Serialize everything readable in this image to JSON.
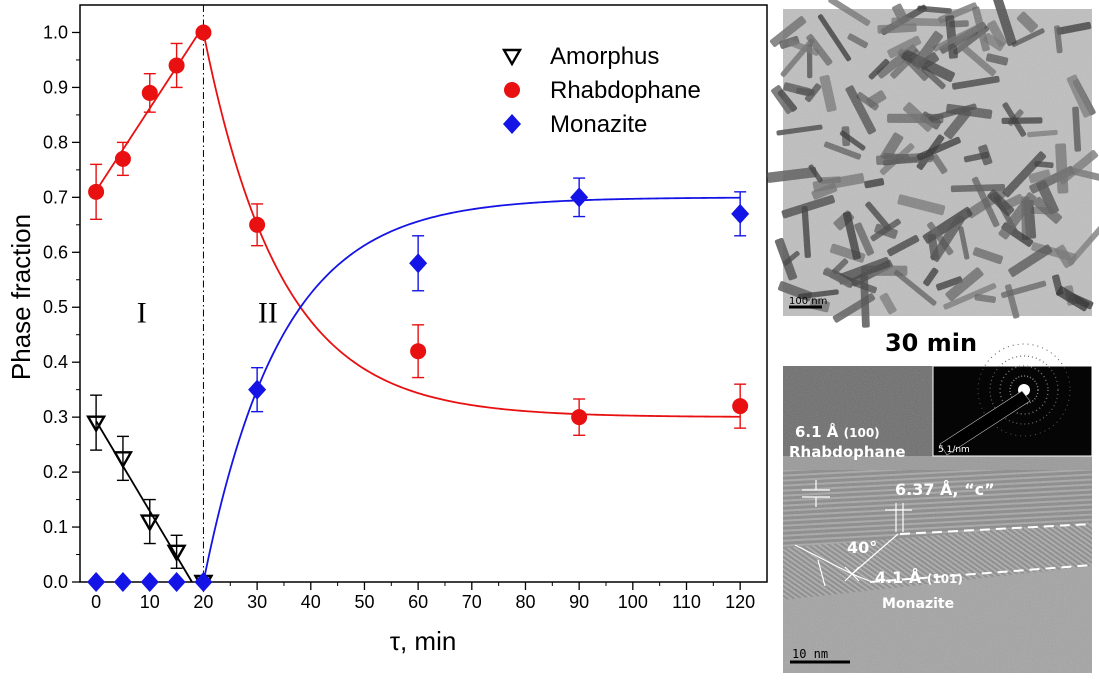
{
  "chart_data": {
    "type": "scatter",
    "xlabel": "τ, min",
    "ylabel": "Phase  fraction",
    "xlim": [
      -3,
      125
    ],
    "ylim": [
      0,
      1.05
    ],
    "xticks": [
      0,
      10,
      20,
      30,
      40,
      50,
      60,
      70,
      80,
      90,
      100,
      110,
      120
    ],
    "yticks": [
      0.0,
      0.1,
      0.2,
      0.3,
      0.4,
      0.5,
      0.6,
      0.7,
      0.8,
      0.9,
      1.0
    ],
    "divider_x": 20,
    "regions": [
      {
        "label": "I",
        "x": 8.5,
        "y": 0.49
      },
      {
        "label": "II",
        "x": 32,
        "y": 0.49
      }
    ],
    "legend_position": "top-right",
    "series": [
      {
        "name": "Amorphus",
        "marker": "triangle-down",
        "color": "#000000",
        "points": [
          {
            "x": 0,
            "y": 0.29,
            "err": 0.05
          },
          {
            "x": 5,
            "y": 0.225,
            "err": 0.04
          },
          {
            "x": 10,
            "y": 0.11,
            "err": 0.04
          },
          {
            "x": 15,
            "y": 0.055,
            "err": 0.03
          },
          {
            "x": 20,
            "y": 0.0,
            "err": 0.0
          }
        ]
      },
      {
        "name": "Rhabdophane",
        "marker": "circle",
        "color": "#e81010",
        "points": [
          {
            "x": 0,
            "y": 0.71,
            "err": 0.05
          },
          {
            "x": 5,
            "y": 0.77,
            "err": 0.03
          },
          {
            "x": 10,
            "y": 0.89,
            "err": 0.035
          },
          {
            "x": 15,
            "y": 0.94,
            "err": 0.04
          },
          {
            "x": 20,
            "y": 1.0,
            "err": 0.0
          },
          {
            "x": 30,
            "y": 0.65,
            "err": 0.038
          },
          {
            "x": 60,
            "y": 0.42,
            "err": 0.048
          },
          {
            "x": 90,
            "y": 0.3,
            "err": 0.033
          },
          {
            "x": 120,
            "y": 0.32,
            "err": 0.04
          }
        ]
      },
      {
        "name": "Monazite",
        "marker": "diamond",
        "color": "#1414e6",
        "points": [
          {
            "x": 0,
            "y": 0.0,
            "err": 0.0
          },
          {
            "x": 5,
            "y": 0.0,
            "err": 0.0
          },
          {
            "x": 10,
            "y": 0.0,
            "err": 0.0
          },
          {
            "x": 15,
            "y": 0.0,
            "err": 0.0
          },
          {
            "x": 20,
            "y": 0.0,
            "err": 0.0
          },
          {
            "x": 30,
            "y": 0.35,
            "err": 0.04
          },
          {
            "x": 60,
            "y": 0.58,
            "err": 0.05
          },
          {
            "x": 90,
            "y": 0.7,
            "err": 0.035
          },
          {
            "x": 120,
            "y": 0.67,
            "err": 0.04
          }
        ]
      }
    ]
  },
  "images": {
    "tem_scale_label": "100 nm",
    "caption": "30 min",
    "hrtem_scale_label": "10  nm",
    "saed_scale_label": "5 1/nm",
    "rhab_spacing": "6.1 Å",
    "rhab_plane": "(100)",
    "rhab_name": "Rhabdophane",
    "c_spacing": "6.37 Å, “c”",
    "angle": "40°",
    "mon_spacing": "4.1 Å",
    "mon_plane": "(101)",
    "mon_name": "Monazite",
    "rhab_color": "#e81010",
    "mon_color": "#3030f0"
  }
}
